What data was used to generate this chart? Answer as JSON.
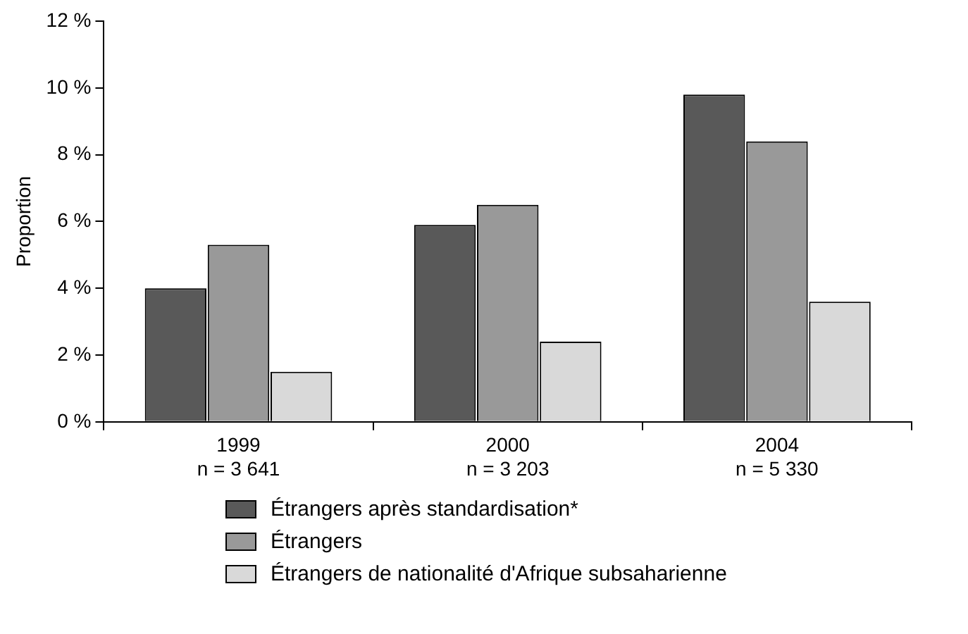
{
  "chart_data": {
    "type": "bar",
    "ylabel": "Proportion",
    "categories": [
      "1999\nn = 3 641",
      "2000\nn = 3 203",
      "2004\nn = 5 330"
    ],
    "series": [
      {
        "name": "Étrangers après standardisation*",
        "color": "#595959",
        "values": [
          4.0,
          5.9,
          9.8
        ]
      },
      {
        "name": "Étrangers",
        "color": "#999999",
        "values": [
          5.3,
          6.5,
          8.4
        ]
      },
      {
        "name": "Étrangers de nationalité d'Afrique subsaharienne",
        "color": "#d9d9d9",
        "values": [
          1.5,
          2.4,
          3.6
        ]
      }
    ],
    "ylim": [
      0,
      12
    ],
    "yticks": [
      {
        "value": 0,
        "label": "0 %"
      },
      {
        "value": 2,
        "label": "2 %"
      },
      {
        "value": 4,
        "label": "4 %"
      },
      {
        "value": 6,
        "label": "6 %"
      },
      {
        "value": 8,
        "label": "8 %"
      },
      {
        "value": 10,
        "label": "10 %"
      },
      {
        "value": 12,
        "label": "12 %"
      }
    ],
    "grid": false,
    "legend": "bottom"
  }
}
